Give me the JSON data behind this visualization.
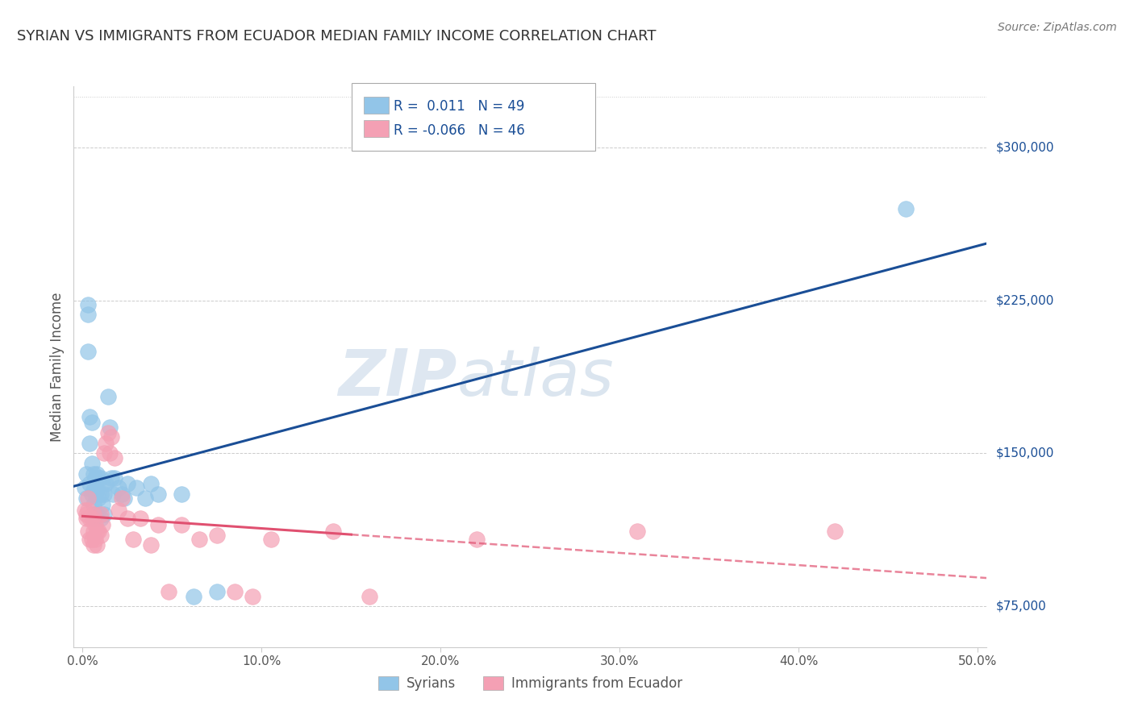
{
  "title": "SYRIAN VS IMMIGRANTS FROM ECUADOR MEDIAN FAMILY INCOME CORRELATION CHART",
  "source": "Source: ZipAtlas.com",
  "ylabel": "Median Family Income",
  "xlim": [
    -0.005,
    0.505
  ],
  "ylim": [
    55000,
    330000
  ],
  "xticks": [
    0.0,
    0.1,
    0.2,
    0.3,
    0.4,
    0.5
  ],
  "xtick_labels": [
    "0.0%",
    "10.0%",
    "20.0%",
    "30.0%",
    "40.0%",
    "50.0%"
  ],
  "yticks": [
    75000,
    150000,
    225000,
    300000
  ],
  "ytick_labels": [
    "$75,000",
    "$150,000",
    "$225,000",
    "$300,000"
  ],
  "watermark_zip": "ZIP",
  "watermark_atlas": "atlas",
  "legend_labels": [
    "Syrians",
    "Immigrants from Ecuador"
  ],
  "blue_color": "#92C5E8",
  "pink_color": "#F4A0B4",
  "blue_line_color": "#1A4E96",
  "pink_line_color": "#E05070",
  "blue_scatter_x": [
    0.001,
    0.002,
    0.002,
    0.003,
    0.003,
    0.003,
    0.004,
    0.004,
    0.004,
    0.005,
    0.005,
    0.005,
    0.006,
    0.006,
    0.006,
    0.006,
    0.007,
    0.007,
    0.007,
    0.008,
    0.008,
    0.008,
    0.009,
    0.009,
    0.01,
    0.01,
    0.01,
    0.011,
    0.011,
    0.012,
    0.012,
    0.013,
    0.014,
    0.015,
    0.016,
    0.017,
    0.018,
    0.02,
    0.022,
    0.023,
    0.025,
    0.03,
    0.035,
    0.038,
    0.042,
    0.055,
    0.062,
    0.075,
    0.46
  ],
  "blue_scatter_y": [
    133000,
    128000,
    140000,
    200000,
    218000,
    223000,
    168000,
    155000,
    135000,
    165000,
    145000,
    130000,
    140000,
    132000,
    125000,
    118000,
    138000,
    130000,
    120000,
    140000,
    132000,
    120000,
    138000,
    128000,
    138000,
    130000,
    118000,
    135000,
    125000,
    130000,
    120000,
    135000,
    178000,
    163000,
    138000,
    130000,
    138000,
    133000,
    130000,
    128000,
    135000,
    133000,
    128000,
    135000,
    130000,
    130000,
    80000,
    82000,
    270000
  ],
  "pink_scatter_x": [
    0.001,
    0.002,
    0.002,
    0.003,
    0.003,
    0.003,
    0.004,
    0.004,
    0.005,
    0.005,
    0.006,
    0.006,
    0.006,
    0.007,
    0.007,
    0.008,
    0.008,
    0.009,
    0.01,
    0.01,
    0.011,
    0.012,
    0.013,
    0.014,
    0.015,
    0.016,
    0.018,
    0.02,
    0.022,
    0.025,
    0.028,
    0.032,
    0.038,
    0.042,
    0.048,
    0.055,
    0.065,
    0.075,
    0.085,
    0.095,
    0.105,
    0.14,
    0.16,
    0.22,
    0.31,
    0.42
  ],
  "pink_scatter_y": [
    122000,
    120000,
    118000,
    128000,
    122000,
    112000,
    118000,
    108000,
    118000,
    108000,
    120000,
    112000,
    105000,
    115000,
    108000,
    112000,
    105000,
    112000,
    120000,
    110000,
    115000,
    150000,
    155000,
    160000,
    150000,
    158000,
    148000,
    122000,
    128000,
    118000,
    108000,
    118000,
    105000,
    115000,
    82000,
    115000,
    108000,
    110000,
    82000,
    80000,
    108000,
    112000,
    80000,
    108000,
    112000,
    112000
  ],
  "background_color": "#FFFFFF",
  "grid_color": "#CCCCCC"
}
